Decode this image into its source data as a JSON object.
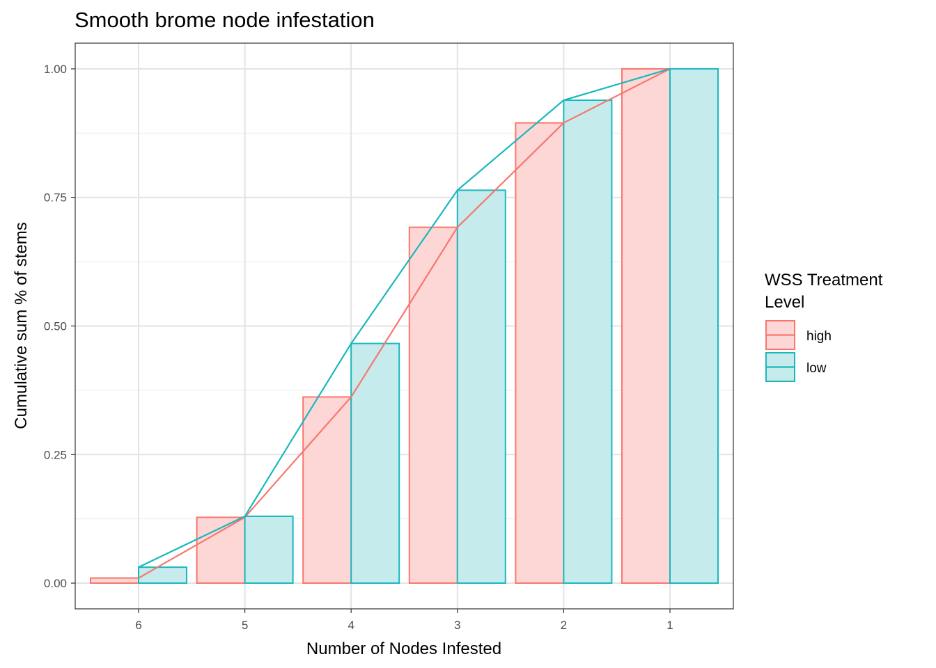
{
  "chart_data": {
    "type": "bar",
    "title": "Smooth brome node infestation",
    "xlabel": "Number of Nodes Infested",
    "ylabel": "Cumulative sum % of stems",
    "categories": [
      "6",
      "5",
      "4",
      "3",
      "2",
      "1"
    ],
    "yticks": [
      "0.00",
      "0.25",
      "0.50",
      "0.75",
      "1.00"
    ],
    "ylim": [
      -0.05,
      1.05
    ],
    "grid": true,
    "legend_position": "right",
    "legend_title": "WSS Treatment Level",
    "legend_title_lines": [
      "WSS Treatment",
      "Level"
    ],
    "series": [
      {
        "name": "high",
        "color": "#F8766D",
        "fill": "#FDD7D5",
        "values": [
          0.01,
          0.128,
          0.362,
          0.692,
          0.895,
          1.0
        ]
      },
      {
        "name": "low",
        "color": "#19B8BD",
        "fill": "#C5EBEC",
        "values": [
          0.031,
          0.13,
          0.466,
          0.764,
          0.939,
          1.0
        ]
      }
    ],
    "geoms": [
      "bar (dodged, outlined)",
      "line"
    ]
  }
}
